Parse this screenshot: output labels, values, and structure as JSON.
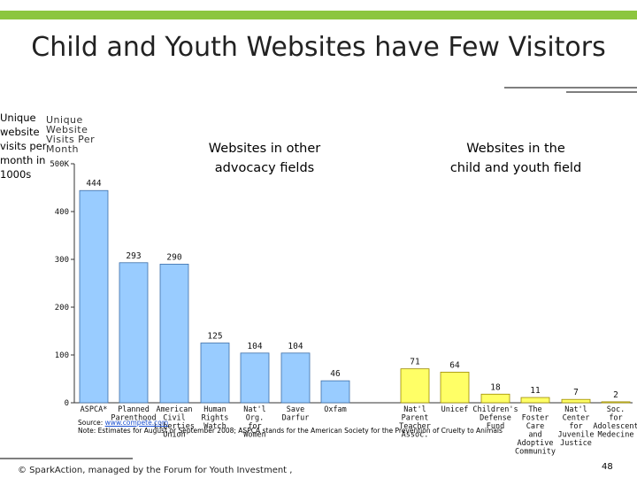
{
  "slide": {
    "title": "Child and Youth Websites have Few Visitors",
    "axis_note": "Unique website visits per month in 1000s",
    "section_other": "Websites in other advocacy fields",
    "section_child": "Websites in the child and youth field",
    "source_prefix": "Source: ",
    "source_link": "www.compete.com",
    "note": "Note: Estimates for August or September 2008; ASPCA stands for the American Society for the Prevention of Cruelty to Animals",
    "footer": "© SparkAction, managed by the Forum for Youth Investment ,",
    "page_number": "48"
  },
  "chart_data": {
    "type": "bar",
    "title": "Unique Website Visits Per Month",
    "ylim": [
      0,
      500
    ],
    "yticks": [
      "0",
      "100",
      "200",
      "300",
      "400",
      "500K"
    ],
    "ytick_values": [
      0,
      100,
      200,
      300,
      400,
      500
    ],
    "categories": [
      "ASPCA*",
      "Planned Parenthood",
      "American Civil Liberties Union",
      "Human Rights Watch",
      "Nat'l Org. for Women",
      "Save Darfur",
      "Oxfam",
      "Nat'l Parent Teacher Assoc.",
      "Unicef",
      "Children's Defense Fund",
      "The Foster Care and Adoptive Community",
      "Nat'l Center for Juvenile Justice",
      "Soc. for Adolescent Medicine"
    ],
    "category_lines": [
      [
        "ASPCA*"
      ],
      [
        "Planned",
        "Parenthood"
      ],
      [
        "American",
        "Civil",
        "Liberties",
        "Union"
      ],
      [
        "Human",
        "Rights",
        "Watch"
      ],
      [
        "Nat'l",
        "Org.",
        "for",
        "Women"
      ],
      [
        "Save",
        "Darfur"
      ],
      [
        "Oxfam"
      ],
      [
        "Nat'l",
        "Parent",
        "Teacher",
        "Assoc."
      ],
      [
        "Unicef"
      ],
      [
        "Children's",
        "Defense",
        "Fund"
      ],
      [
        "The",
        "Foster",
        "Care",
        "and",
        "Adoptive",
        "Community"
      ],
      [
        "Nat'l",
        "Center",
        "for",
        "Juvenile",
        "Justice"
      ],
      [
        "Soc.",
        "for",
        "Adolescent",
        "Medecine"
      ]
    ],
    "values": [
      444,
      293,
      290,
      125,
      104,
      104,
      46,
      71,
      64,
      18,
      11,
      7,
      2
    ],
    "groups": [
      "other",
      "other",
      "other",
      "other",
      "other",
      "other",
      "other",
      "child",
      "child",
      "child",
      "child",
      "child",
      "child"
    ],
    "colors": {
      "other": "#99ccff",
      "child": "#ffff66",
      "other_stroke": "#3d6fa8",
      "child_stroke": "#9c8a00"
    }
  }
}
